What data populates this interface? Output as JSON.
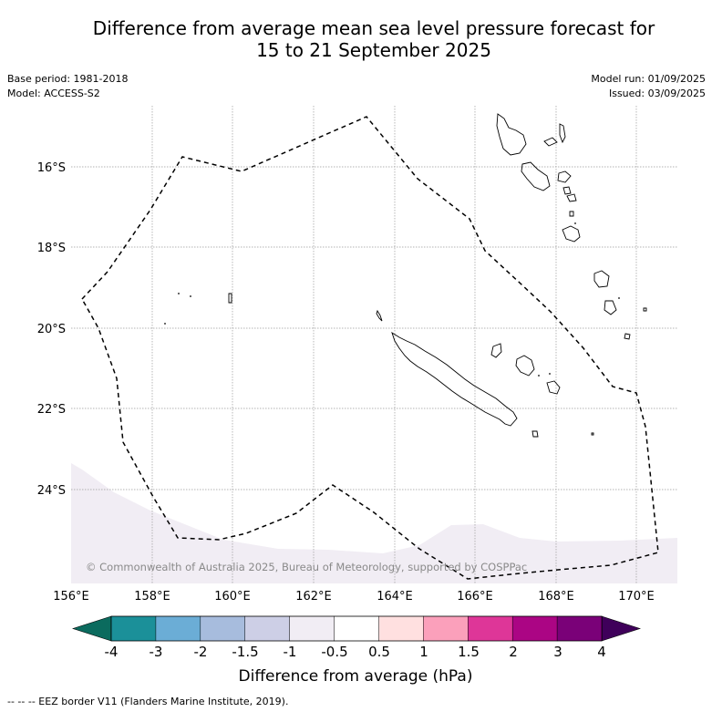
{
  "title": {
    "line1": "Difference from average mean sea level pressure forecast for",
    "line2": "15 to 21 September 2025"
  },
  "meta": {
    "base_period": "Base period: 1981-2018",
    "model": "Model: ACCESS-S2",
    "model_run": "Model run: 01/09/2025",
    "issued": "Issued: 03/09/2025"
  },
  "map": {
    "lat_labels": [
      "16°S",
      "18°S",
      "20°S",
      "22°S",
      "24°S"
    ],
    "lon_labels": [
      "156°E",
      "158°E",
      "160°E",
      "162°E",
      "164°E",
      "166°E",
      "168°E",
      "170°E"
    ],
    "copyright": "© Commonwealth of Australia 2025, Bureau of Meteorology, supported by COSPPac",
    "anomaly_fill_color": "#f1edf4",
    "eez_line_color": "#000000"
  },
  "colorbar": {
    "title": "Difference from average (hPa)",
    "tick_labels": [
      "-4",
      "-3",
      "-2",
      "-1.5",
      "-1",
      "-0.5",
      "0.5",
      "1",
      "1.5",
      "2",
      "3",
      "4"
    ],
    "low_extend_color": "#0b6b5e",
    "high_extend_color": "#3f005a",
    "colors": [
      "#1b9099",
      "#6badd6",
      "#a7bcdd",
      "#cdcfe6",
      "#f1edf4",
      "#ffffff",
      "#ffe0e0",
      "#fba0bb",
      "#de3698",
      "#ab0584",
      "#7a0178"
    ]
  },
  "footnote": "-- -- -- EEZ border V11 (Flanders Marine Institute, 2019)."
}
